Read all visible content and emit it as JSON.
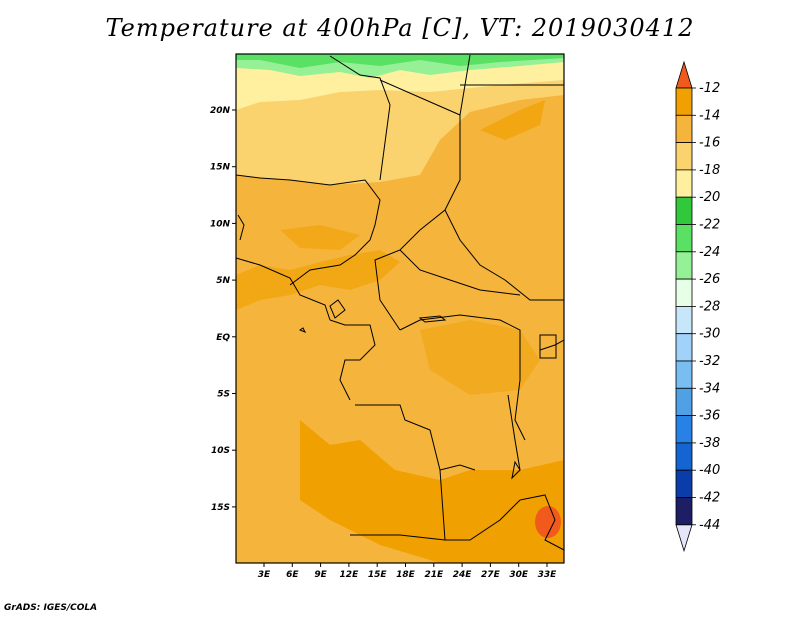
{
  "title": "Temperature at 400hPa [C], VT: 2019030412",
  "credit": "GrADS: IGES/COLA",
  "map": {
    "lon_ticks": [
      "3E",
      "6E",
      "9E",
      "12E",
      "15E",
      "18E",
      "21E",
      "24E",
      "27E",
      "30E",
      "33E"
    ],
    "lat_ticks": [
      "20N",
      "15N",
      "10N",
      "5N",
      "EQ",
      "5S",
      "10S",
      "15S"
    ]
  },
  "colorbar": {
    "labels": [
      "-12",
      "-14",
      "-16",
      "-18",
      "-20",
      "-22",
      "-24",
      "-26",
      "-28",
      "-30",
      "-32",
      "-34",
      "-36",
      "-38",
      "-40",
      "-42",
      "-44"
    ],
    "colors": [
      "#f05a1c",
      "#f0a000",
      "#f5b43c",
      "#fad26e",
      "#fff0a0",
      "#32c83c",
      "#5ae164",
      "#96f096",
      "#e6ffe6",
      "#c8e6fa",
      "#a0d2fa",
      "#78bef0",
      "#50a0e6",
      "#2882e6",
      "#1464d2",
      "#0a3caa",
      "#1e1e64",
      "#e6e6fa"
    ]
  }
}
